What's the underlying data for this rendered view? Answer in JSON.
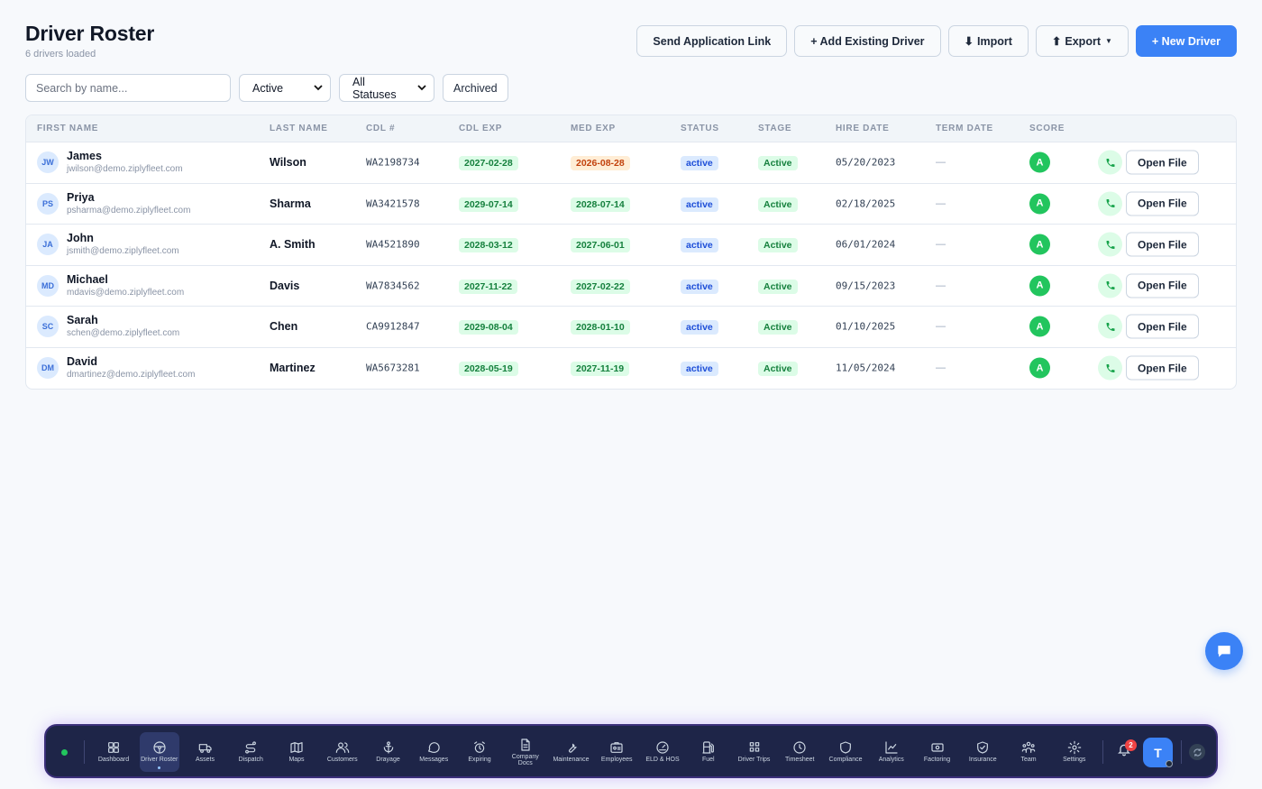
{
  "header": {
    "title": "Driver Roster",
    "subtitle": "6 drivers loaded"
  },
  "actions": {
    "send_link": "Send Application Link",
    "add_existing": "+ Add Existing Driver",
    "import": "Import",
    "export": "Export",
    "new_driver": "+ New Driver"
  },
  "filters": {
    "search_placeholder": "Search by name...",
    "active_select": "Active",
    "status_select": "All Statuses",
    "archived": "Archived"
  },
  "table": {
    "columns": [
      "FIRST NAME",
      "LAST NAME",
      "CDL #",
      "CDL EXP",
      "MED EXP",
      "STATUS",
      "STAGE",
      "HIRE DATE",
      "TERM DATE",
      "SCORE"
    ],
    "open_file_label": "Open File",
    "rows": [
      {
        "initials": "JW",
        "first": "James",
        "email": "jwilson@demo.ziplyfleet.com",
        "last": "Wilson",
        "cdl": "WA2198734",
        "cdl_exp": "2027-02-28",
        "med_exp": "2026-08-28",
        "med_exp_warn": true,
        "status": "active",
        "stage": "Active",
        "hire": "05/20/2023",
        "term": "—",
        "score": "A"
      },
      {
        "initials": "PS",
        "first": "Priya",
        "email": "psharma@demo.ziplyfleet.com",
        "last": "Sharma",
        "cdl": "WA3421578",
        "cdl_exp": "2029-07-14",
        "med_exp": "2028-07-14",
        "med_exp_warn": false,
        "status": "active",
        "stage": "Active",
        "hire": "02/18/2025",
        "term": "—",
        "score": "A"
      },
      {
        "initials": "JA",
        "first": "John",
        "email": "jsmith@demo.ziplyfleet.com",
        "last": "A. Smith",
        "cdl": "WA4521890",
        "cdl_exp": "2028-03-12",
        "med_exp": "2027-06-01",
        "med_exp_warn": false,
        "status": "active",
        "stage": "Active",
        "hire": "06/01/2024",
        "term": "—",
        "score": "A"
      },
      {
        "initials": "MD",
        "first": "Michael",
        "email": "mdavis@demo.ziplyfleet.com",
        "last": "Davis",
        "cdl": "WA7834562",
        "cdl_exp": "2027-11-22",
        "med_exp": "2027-02-22",
        "med_exp_warn": false,
        "status": "active",
        "stage": "Active",
        "hire": "09/15/2023",
        "term": "—",
        "score": "A"
      },
      {
        "initials": "SC",
        "first": "Sarah",
        "email": "schen@demo.ziplyfleet.com",
        "last": "Chen",
        "cdl": "CA9912847",
        "cdl_exp": "2029-08-04",
        "med_exp": "2028-01-10",
        "med_exp_warn": false,
        "status": "active",
        "stage": "Active",
        "hire": "01/10/2025",
        "term": "—",
        "score": "A"
      },
      {
        "initials": "DM",
        "first": "David",
        "email": "dmartinez@demo.ziplyfleet.com",
        "last": "Martinez",
        "cdl": "WA5673281",
        "cdl_exp": "2028-05-19",
        "med_exp": "2027-11-19",
        "med_exp_warn": false,
        "status": "active",
        "stage": "Active",
        "hire": "11/05/2024",
        "term": "—",
        "score": "A"
      }
    ]
  },
  "dock": {
    "items": [
      {
        "label": "Dashboard",
        "icon": "dashboard-icon"
      },
      {
        "label": "Driver Roster",
        "icon": "steering-wheel-icon",
        "active": true
      },
      {
        "label": "Assets",
        "icon": "truck-icon"
      },
      {
        "label": "Dispatch",
        "icon": "route-icon"
      },
      {
        "label": "Maps",
        "icon": "map-icon"
      },
      {
        "label": "Customers",
        "icon": "users-icon"
      },
      {
        "label": "Drayage",
        "icon": "anchor-icon"
      },
      {
        "label": "Messages",
        "icon": "message-icon"
      },
      {
        "label": "Expiring",
        "icon": "alarm-clock-icon"
      },
      {
        "label": "Company Docs",
        "icon": "document-icon"
      },
      {
        "label": "Maintenance",
        "icon": "wrench-icon"
      },
      {
        "label": "Employees",
        "icon": "id-badge-icon"
      },
      {
        "label": "ELD & HOS",
        "icon": "gauge-icon"
      },
      {
        "label": "Fuel",
        "icon": "fuel-icon"
      },
      {
        "label": "Driver Trips",
        "icon": "grid-icon"
      },
      {
        "label": "Timesheet",
        "icon": "clock-icon"
      },
      {
        "label": "Compliance",
        "icon": "shield-icon"
      },
      {
        "label": "Analytics",
        "icon": "chart-line-icon"
      },
      {
        "label": "Factoring",
        "icon": "cash-icon"
      },
      {
        "label": "Insurance",
        "icon": "shield-check-icon"
      },
      {
        "label": "Team",
        "icon": "team-icon"
      },
      {
        "label": "Settings",
        "icon": "gear-icon"
      }
    ],
    "notification_count": "2",
    "user_initial": "T"
  },
  "colors": {
    "accent": "#3b82f6",
    "success": "#22c55e",
    "warning": "#c2410c",
    "dock_bg": "#1e2548"
  }
}
